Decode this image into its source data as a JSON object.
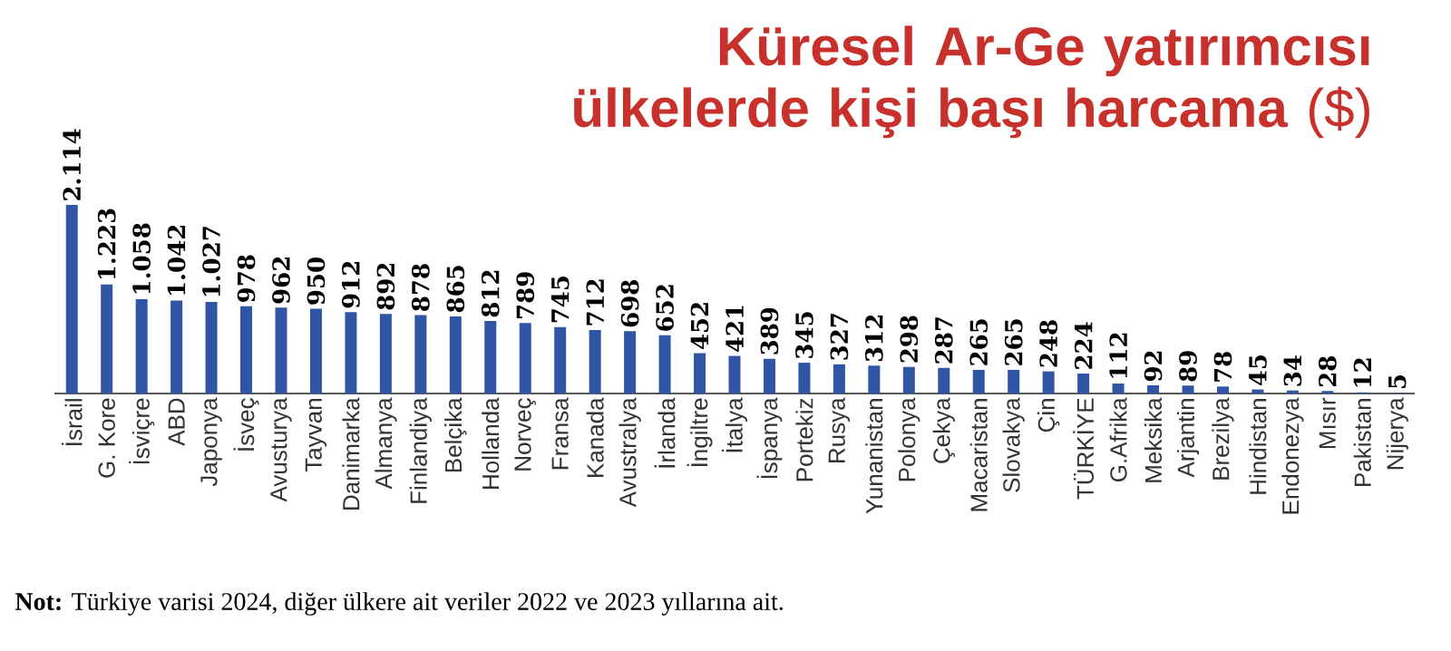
{
  "chart_data": {
    "type": "bar",
    "title": "**Küresel Ar-Ge yatırımcısı ülkelerde kişi başı harcama** ($)",
    "categories": [
      "İsrail",
      "G. Kore",
      "İsviçre",
      "ABD",
      "Japonya",
      "İsveç",
      "Avusturya",
      "Tayvan",
      "Danimarka",
      "Almanya",
      "Finlandiya",
      "Belçika",
      "Hollanda",
      "Norveç",
      "Fransa",
      "Kanada",
      "Avustralya",
      "İrlanda",
      "İngiltre",
      "İtalya",
      "İspanya",
      "Portekiz",
      "Rusya",
      "Yunanistan",
      "Polonya",
      "Çekya",
      "Macaristan",
      "Slovakya",
      "Çin",
      "TÜRKİYE",
      "G.Afrika",
      "Meksika",
      "Arjantin",
      "Brezilya",
      "Hindistan",
      "Endonezya",
      "Mısır",
      "Pakistan",
      "Nijerya"
    ],
    "values": [
      2114,
      1223,
      1058,
      1042,
      1027,
      978,
      962,
      950,
      912,
      892,
      878,
      865,
      812,
      789,
      745,
      712,
      698,
      652,
      452,
      421,
      389,
      345,
      327,
      312,
      298,
      287,
      265,
      265,
      248,
      224,
      112,
      92,
      89,
      78,
      45,
      34,
      28,
      12,
      5
    ],
    "value_labels": [
      "2.114",
      "1.223",
      "1.058",
      "1.042",
      "1.027",
      "978",
      "962",
      "950",
      "912",
      "892",
      "878",
      "865",
      "812",
      "789",
      "745",
      "712",
      "698",
      "652",
      "452",
      "421",
      "389",
      "345",
      "327",
      "312",
      "298",
      "287",
      "265",
      "265",
      "248",
      "224",
      "112",
      "92",
      "89",
      "78",
      "45",
      "34",
      "28",
      "12",
      "5"
    ],
    "color": "#2f55a4",
    "annotations": [
      "**Not:** Türkiye varisi 2024, diğer ülkere ait veriler 2022 ve 2023 yıllarına ait."
    ]
  }
}
